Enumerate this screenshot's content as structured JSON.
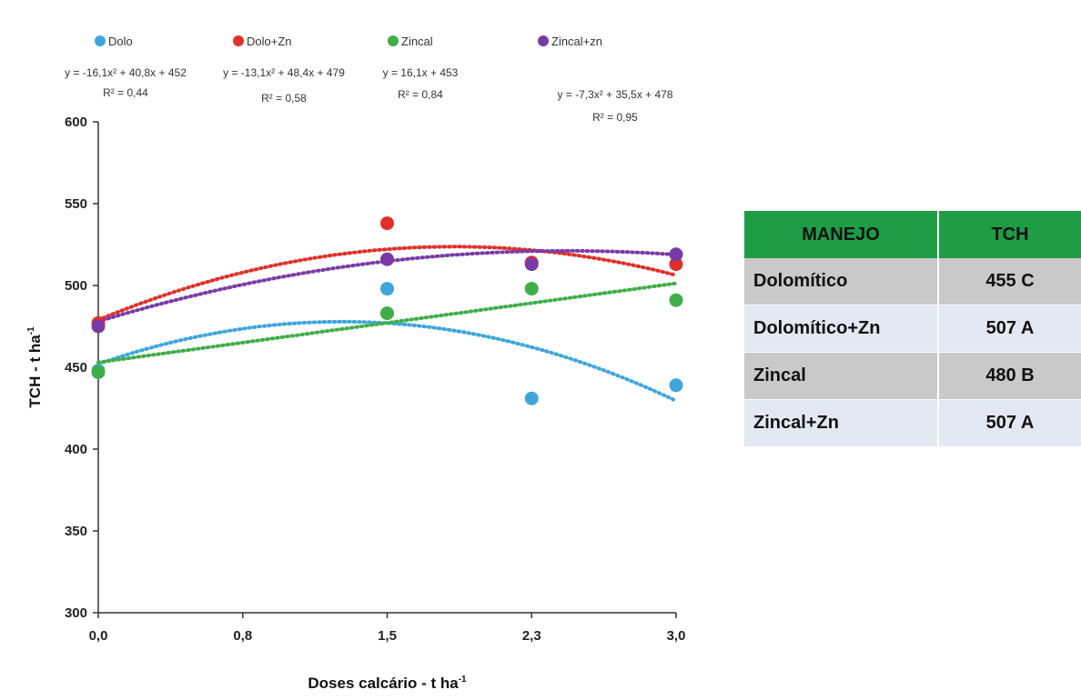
{
  "chart_data": {
    "type": "scatter",
    "xlabel": "Doses calcário - t ha",
    "xlabel_sup": "-1",
    "ylabel": "TCH - t ha",
    "ylabel_sup": "-1",
    "x_ticks": [
      "0,0",
      "0,8",
      "1,5",
      "2,3",
      "3,0"
    ],
    "x_values": [
      0.0,
      0.75,
      1.5,
      2.25,
      3.0
    ],
    "xlim": [
      0,
      3
    ],
    "y_ticks": [
      "300",
      "350",
      "400",
      "450",
      "500",
      "550",
      "600"
    ],
    "ylim": [
      300,
      600
    ],
    "grid": false,
    "legend_position": "top",
    "trendline_style": "dotted polynomial",
    "series": [
      {
        "name": "Dolo",
        "color": "#3ea6dc",
        "points": [
          {
            "x": 0.0,
            "y": 448
          },
          {
            "x": 1.5,
            "y": 498
          },
          {
            "x": 2.25,
            "y": 431
          },
          {
            "x": 3.0,
            "y": 439
          }
        ],
        "trend": {
          "a": -16.1,
          "b": 40.8,
          "c": 452
        },
        "equation": "y = -16,1x² + 40,8x + 452",
        "r2": "R² = 0,44"
      },
      {
        "name": "Dolo+Zn",
        "color": "#e0302a",
        "points": [
          {
            "x": 0.0,
            "y": 477
          },
          {
            "x": 1.5,
            "y": 538
          },
          {
            "x": 2.25,
            "y": 514
          },
          {
            "x": 3.0,
            "y": 513
          }
        ],
        "trend": {
          "a": -13.1,
          "b": 48.4,
          "c": 479
        },
        "equation": "y = -13,1x² + 48,4x + 479",
        "r2": "R² = 0,58"
      },
      {
        "name": "Zincal",
        "color": "#3fae49",
        "points": [
          {
            "x": 0.0,
            "y": 447
          },
          {
            "x": 1.5,
            "y": 483
          },
          {
            "x": 2.25,
            "y": 498
          },
          {
            "x": 3.0,
            "y": 491
          }
        ],
        "trend": {
          "a": 0,
          "b": 16.1,
          "c": 453
        },
        "equation": "y = 16,1x + 453",
        "r2": "R² = 0,84"
      },
      {
        "name": "Zincal+zn",
        "color": "#7a3aa6",
        "points": [
          {
            "x": 0.0,
            "y": 475
          },
          {
            "x": 1.5,
            "y": 516
          },
          {
            "x": 2.25,
            "y": 513
          },
          {
            "x": 3.0,
            "y": 519
          }
        ],
        "trend": {
          "a": -7.3,
          "b": 35.5,
          "c": 478
        },
        "equation": "y = -7,3x² + 35,5x + 478",
        "r2": "R² = 0,95"
      }
    ]
  },
  "table": {
    "headers": [
      "MANEJO",
      "TCH"
    ],
    "header_color": "#1e9c46",
    "rows": [
      [
        "Dolomítico",
        "455 C"
      ],
      [
        "Dolomítico+Zn",
        "507 A"
      ],
      [
        "Zincal",
        "480 B"
      ],
      [
        "Zincal+Zn",
        "507 A"
      ]
    ]
  }
}
